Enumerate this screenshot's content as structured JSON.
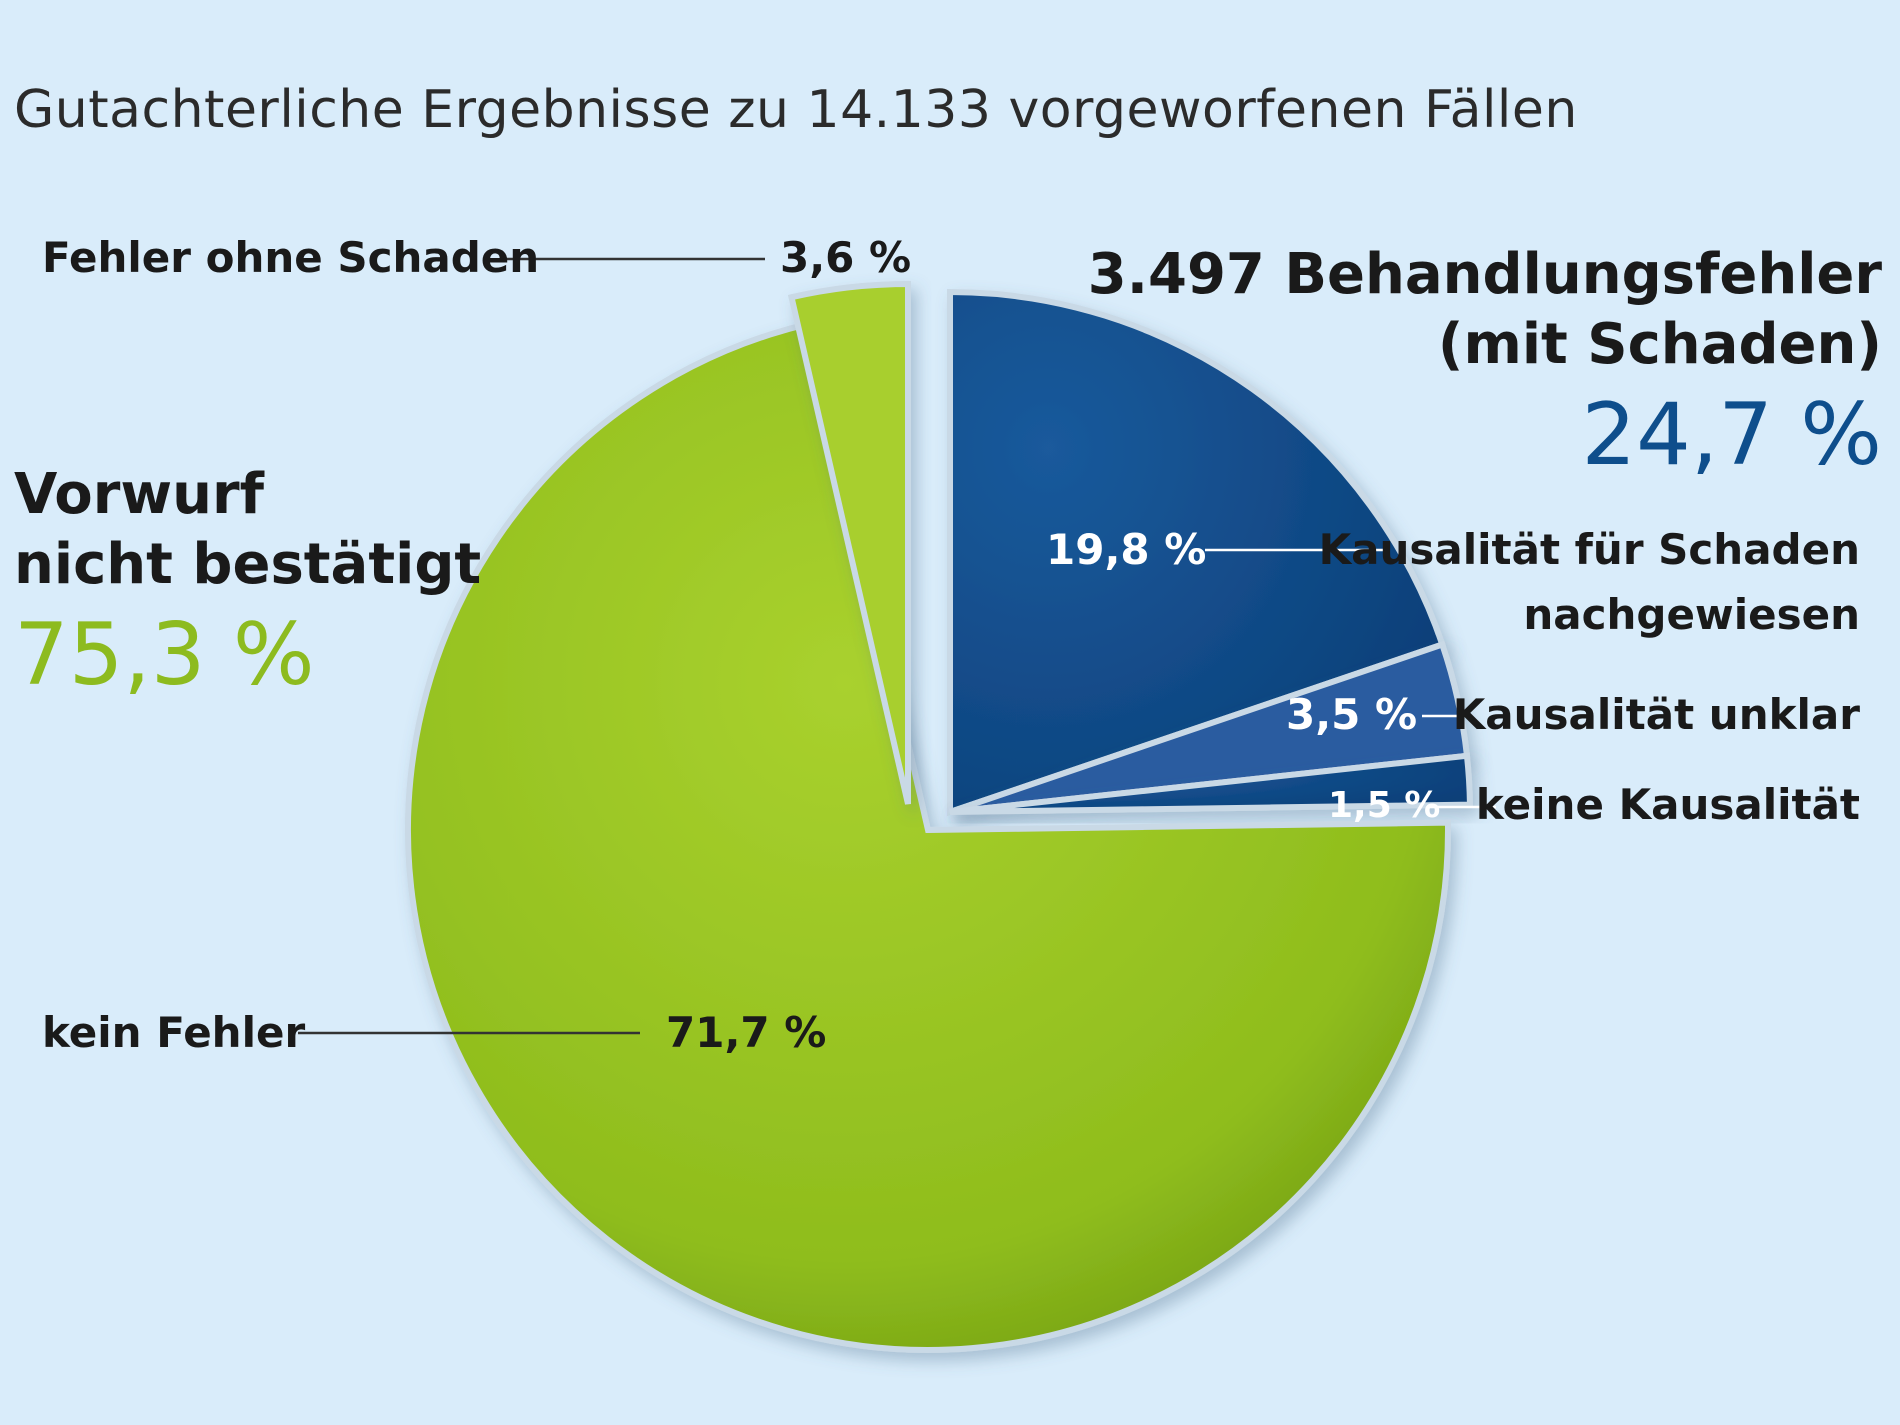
{
  "title": "Gutachterliche Ergebnisse zu 14.133 vorgeworfenen Fällen",
  "groups": {
    "not_confirmed": {
      "label_line1": "Vorwurf",
      "label_line2": "nicht bestätigt",
      "percent": "75,3 %",
      "color": "#8dbb1f"
    },
    "confirmed": {
      "label_line1": "3.497 Behandlungsfehler",
      "label_line2": "(mit Schaden)",
      "percent": "24,7 %",
      "color": "#0e4e8c"
    }
  },
  "slices": [
    {
      "name": "Kausalität für Schaden nachgewiesen",
      "label_line1": "Kausalität für Schaden",
      "label_line2": "nachgewiesen",
      "value_text": "19,8 %",
      "color": "#0e4a86"
    },
    {
      "name": "Kausalität unklar",
      "label_line1": "Kausalität unklar",
      "value_text": "3,5 %",
      "color": "#2c5ba0"
    },
    {
      "name": "keine Kausalität",
      "label_line1": "keine Kausalität",
      "value_text": "1,5 %",
      "color": "#0e4a86"
    },
    {
      "name": "kein Fehler",
      "label_line1": "kein Fehler",
      "value_text": "71,7 %",
      "color": "#95c11f"
    },
    {
      "name": "Fehler ohne Schaden",
      "label_line1": "Fehler ohne Schaden",
      "value_text": "3,6 %",
      "color": "#a8cf2e"
    }
  ],
  "chart_data": {
    "type": "pie",
    "title": "Gutachterliche Ergebnisse zu 14.133 vorgeworfenen Fällen",
    "labels": [
      "Kausalität für Schaden nachgewiesen",
      "Kausalität unklar",
      "keine Kausalität",
      "kein Fehler",
      "Fehler ohne Schaden"
    ],
    "values": [
      19.8,
      3.5,
      1.5,
      71.7,
      3.6
    ],
    "groups": [
      {
        "name": "3.497 Behandlungsfehler (mit Schaden)",
        "value": 24.7,
        "members": [
          "Kausalität für Schaden nachgewiesen",
          "Kausalität unklar",
          "keine Kausalität"
        ]
      },
      {
        "name": "Vorwurf nicht bestätigt",
        "value": 75.3,
        "members": [
          "kein Fehler",
          "Fehler ohne Schaden"
        ]
      }
    ],
    "colors": [
      "#0e4a86",
      "#2c5ba0",
      "#0e4a86",
      "#95c11f",
      "#a8cf2e"
    ],
    "legend": "none"
  }
}
